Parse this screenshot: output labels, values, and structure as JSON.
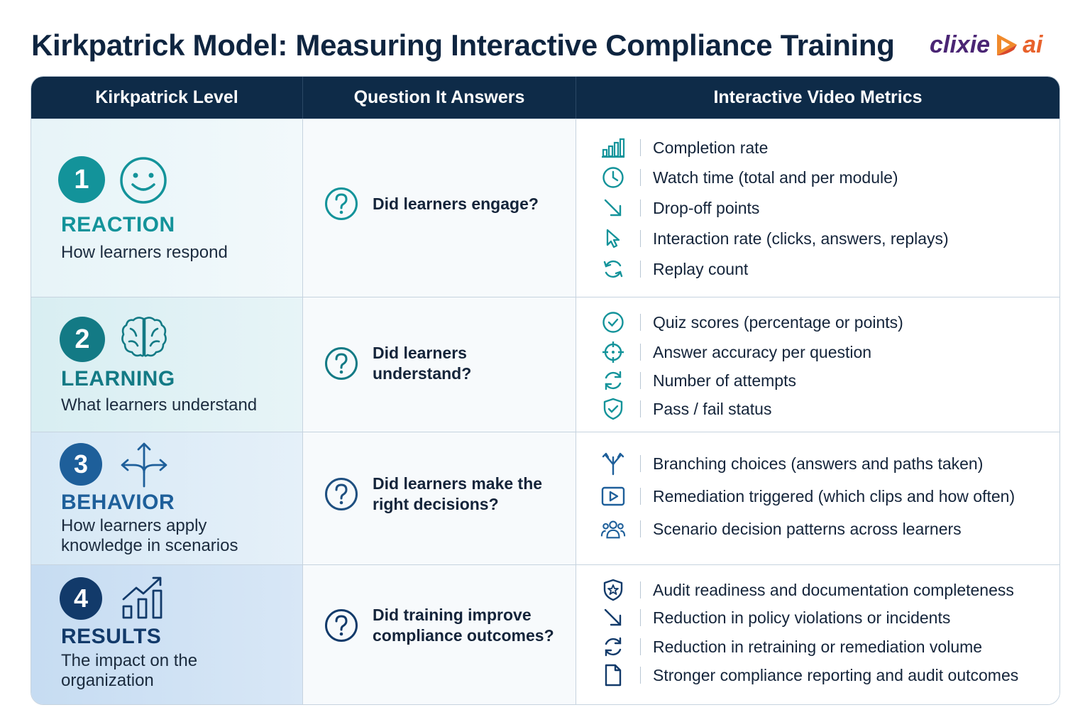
{
  "title": "Kirkpatrick Model: Measuring Interactive Compliance Training",
  "logo": {
    "wordmark": "clixie",
    "suffix": "ai",
    "icon": "play-flame-icon"
  },
  "colors": {
    "teal": "#13939a",
    "teal_dark": "#137a85",
    "blue": "#1e5f9a",
    "navy": "#123a6a",
    "header": "#0e2b48"
  },
  "table": {
    "headers": [
      "Kirkpatrick Level",
      "Question It Answers",
      "Interactive Video Metrics"
    ],
    "rows": [
      {
        "number": "1",
        "name": "REACTION",
        "description": "How learners respond",
        "icon": "smiley-icon",
        "question": "Did learners engage?",
        "metrics": [
          {
            "icon": "bar-chart-icon",
            "text": "Completion rate"
          },
          {
            "icon": "clock-icon",
            "text": "Watch time (total and per module)"
          },
          {
            "icon": "arrow-down-right-icon",
            "text": "Drop-off points"
          },
          {
            "icon": "cursor-icon",
            "text": "Interaction rate (clicks, answers, replays)"
          },
          {
            "icon": "replay-icon",
            "text": "Replay count"
          }
        ]
      },
      {
        "number": "2",
        "name": "LEARNING",
        "description": "What learners understand",
        "icon": "brain-icon",
        "question": "Did learners understand?",
        "metrics": [
          {
            "icon": "check-circle-icon",
            "text": "Quiz scores (percentage or points)"
          },
          {
            "icon": "target-icon",
            "text": "Answer accuracy per question"
          },
          {
            "icon": "refresh-icon",
            "text": "Number of attempts"
          },
          {
            "icon": "shield-check-icon",
            "text": "Pass / fail status"
          }
        ]
      },
      {
        "number": "3",
        "name": "BEHAVIOR",
        "description": "How learners apply knowledge in scenarios",
        "icon": "branch-arrows-icon",
        "question": "Did learners make the right decisions?",
        "metrics": [
          {
            "icon": "branch-icon",
            "text": "Branching choices (answers and paths taken)"
          },
          {
            "icon": "play-box-icon",
            "text": "Remediation triggered (which clips and how often)"
          },
          {
            "icon": "users-icon",
            "text": "Scenario decision patterns across learners"
          }
        ]
      },
      {
        "number": "4",
        "name": "RESULTS",
        "description": "The impact on the organization",
        "icon": "growth-chart-icon",
        "question": "Did training improve compliance outcomes?",
        "metrics": [
          {
            "icon": "shield-star-icon",
            "text": "Audit readiness and documentation completeness"
          },
          {
            "icon": "arrow-down-right-icon",
            "text": "Reduction in policy violations or incidents"
          },
          {
            "icon": "refresh-icon",
            "text": "Reduction in retraining or remediation volume"
          },
          {
            "icon": "document-icon",
            "text": "Stronger compliance reporting and audit outcomes"
          }
        ]
      }
    ]
  }
}
